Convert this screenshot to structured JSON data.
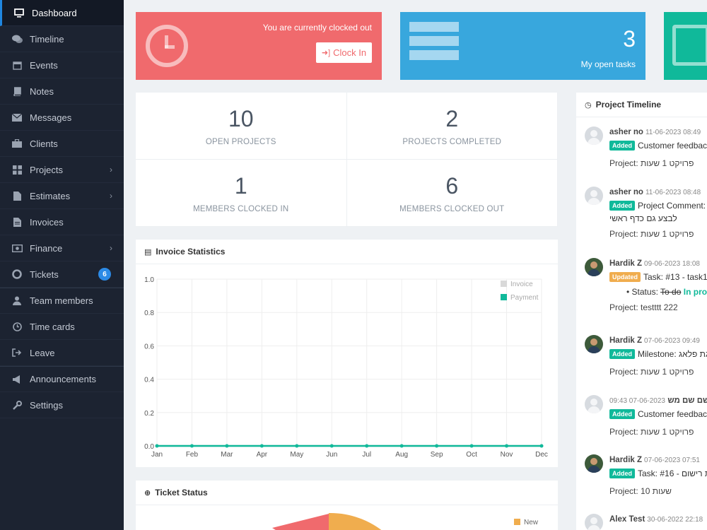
{
  "sidebar": {
    "items": [
      {
        "label": "Dashboard",
        "icon": "monitor-icon"
      },
      {
        "label": "Timeline",
        "icon": "comments-icon"
      },
      {
        "label": "Events",
        "icon": "calendar-icon"
      },
      {
        "label": "Notes",
        "icon": "book-icon"
      },
      {
        "label": "Messages",
        "icon": "envelope-icon"
      },
      {
        "label": "Clients",
        "icon": "briefcase-icon"
      },
      {
        "label": "Projects",
        "icon": "grid-icon"
      },
      {
        "label": "Estimates",
        "icon": "file-icon"
      },
      {
        "label": "Invoices",
        "icon": "file-text-icon"
      },
      {
        "label": "Finance",
        "icon": "money-icon"
      },
      {
        "label": "Tickets",
        "icon": "lifebuoy-icon",
        "badge": "6"
      },
      {
        "label": "Team members",
        "icon": "user-icon"
      },
      {
        "label": "Time cards",
        "icon": "clock-icon"
      },
      {
        "label": "Leave",
        "icon": "sign-out-icon"
      },
      {
        "label": "Announcements",
        "icon": "bullhorn-icon"
      },
      {
        "label": "Settings",
        "icon": "wrench-icon"
      }
    ]
  },
  "clock_card": {
    "status_text": "You are currently clocked out",
    "button_label": "Clock In",
    "color": "#f06a6d"
  },
  "tasks_card": {
    "count": "3",
    "label": "My open tasks",
    "color": "#38a7dd"
  },
  "events_card": {
    "color": "#10b99a"
  },
  "stats": [
    {
      "value": "10",
      "label": "OPEN PROJECTS"
    },
    {
      "value": "2",
      "label": "PROJECTS COMPLETED"
    },
    {
      "value": "1",
      "label": "MEMBERS CLOCKED IN"
    },
    {
      "value": "6",
      "label": "MEMBERS CLOCKED OUT"
    }
  ],
  "invoice_panel": {
    "title": "Invoice Statistics"
  },
  "ticket_panel": {
    "title": "Ticket Status",
    "legend_new": "New"
  },
  "chart_data": {
    "type": "line",
    "title": "Invoice Statistics",
    "x": [
      "Jan",
      "Feb",
      "Mar",
      "Apr",
      "May",
      "Jun",
      "Jul",
      "Aug",
      "Sep",
      "Oct",
      "Nov",
      "Dec"
    ],
    "series": [
      {
        "name": "Invoice",
        "values": [
          0,
          0,
          0,
          0,
          0,
          0,
          0,
          0,
          0,
          0,
          0,
          0
        ],
        "color": "#d9d9d9"
      },
      {
        "name": "Payment",
        "values": [
          0,
          0,
          0,
          0,
          0,
          0,
          0,
          0,
          0,
          0,
          0,
          0
        ],
        "color": "#10b99a"
      }
    ],
    "yticks": [
      "1.0",
      "0.8",
      "0.6",
      "0.4",
      "0.2",
      "0.0"
    ],
    "ylim": [
      0,
      1
    ],
    "grid": true,
    "legend": "top-right"
  },
  "timeline": {
    "title": "Project Timeline",
    "items": [
      {
        "name": "asher no",
        "time": "11-06-2023 08:49",
        "tag": "Added",
        "text": "Customer feedbac",
        "project": "Project: פרויקט 1 שעות"
      },
      {
        "name": "asher no",
        "time": "11-06-2023 08:48",
        "tag": "Added",
        "text": "Project Comment:",
        "sub": "לבצע גם כדף ראשי",
        "project": "Project: פרויקט 1 שעות"
      },
      {
        "name": "Hardik Z",
        "time": "09-06-2023 18:08",
        "tag": "Updated",
        "text": "Task: #13 - task1",
        "status_label": "Status:",
        "status_old": "To do",
        "status_new": "In pro",
        "project": "Project: testttt 222"
      },
      {
        "name": "Hardik Z",
        "time": "07-06-2023 09:49",
        "tag": "Added",
        "text": "Milestone: גת פלאג",
        "project": "Project: פרויקט 1 שעות"
      },
      {
        "name": "שם שם מש",
        "time": "09:43 07-06-2023",
        "tag": "Added",
        "text": "Customer feedbac",
        "project": "Project: פרויקט 1 שעות"
      },
      {
        "name": "Hardik Z",
        "time": "07-06-2023 07:51",
        "tag": "Added",
        "text": "Task: #16 - גת רישום",
        "project": "Project: 10 שעות"
      },
      {
        "name": "Alex Test",
        "time": "30-06-2022 22:18"
      }
    ]
  }
}
